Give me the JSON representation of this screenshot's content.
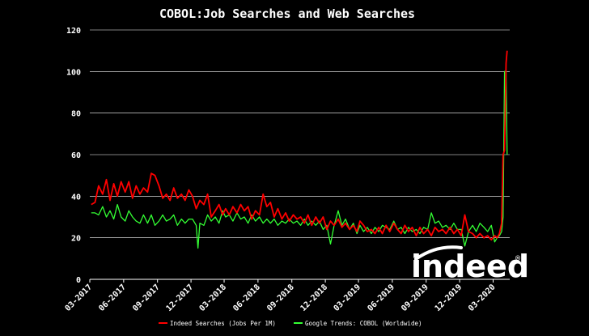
{
  "chart_data": {
    "type": "line",
    "title": "COBOL:Job Searches and Web Searches",
    "xlabel": "",
    "ylabel": "",
    "ylim": [
      0,
      120
    ],
    "yticks": [
      0,
      20,
      40,
      60,
      80,
      100,
      120
    ],
    "grid": "horizontal",
    "x_start": "2017-03-01",
    "x_end": "2020-04-15",
    "x_ticks": [
      {
        "date": "2017-03-01",
        "label": "03-2017"
      },
      {
        "date": "2017-06-01",
        "label": "06-2017"
      },
      {
        "date": "2017-09-01",
        "label": "09-2017"
      },
      {
        "date": "2017-12-01",
        "label": "12-2017"
      },
      {
        "date": "2018-03-01",
        "label": "03-2018"
      },
      {
        "date": "2018-06-01",
        "label": "06-2018"
      },
      {
        "date": "2018-09-01",
        "label": "09-2018"
      },
      {
        "date": "2018-12-01",
        "label": "12-2018"
      },
      {
        "date": "2019-03-01",
        "label": "03-2019"
      },
      {
        "date": "2019-06-01",
        "label": "06-2019"
      },
      {
        "date": "2019-09-01",
        "label": "09-2019"
      },
      {
        "date": "2019-12-01",
        "label": "12-2019"
      },
      {
        "date": "2020-03-01",
        "label": "03-2020"
      }
    ],
    "legend_position": "bottom",
    "series": [
      {
        "name": "Indeed Searches (Jobs Per 1M)",
        "color": "#ff0000",
        "points": [
          [
            "2017-03-05",
            36
          ],
          [
            "2017-03-15",
            37
          ],
          [
            "2017-03-25",
            45
          ],
          [
            "2017-04-05",
            41
          ],
          [
            "2017-04-15",
            48
          ],
          [
            "2017-04-25",
            38
          ],
          [
            "2017-05-05",
            46
          ],
          [
            "2017-05-15",
            40
          ],
          [
            "2017-05-25",
            47
          ],
          [
            "2017-06-05",
            42
          ],
          [
            "2017-06-15",
            47
          ],
          [
            "2017-06-25",
            39
          ],
          [
            "2017-07-05",
            45
          ],
          [
            "2017-07-15",
            41
          ],
          [
            "2017-07-25",
            44
          ],
          [
            "2017-08-05",
            42
          ],
          [
            "2017-08-15",
            51
          ],
          [
            "2017-08-25",
            50
          ],
          [
            "2017-09-05",
            45
          ],
          [
            "2017-09-15",
            39
          ],
          [
            "2017-09-25",
            41
          ],
          [
            "2017-10-05",
            38
          ],
          [
            "2017-10-15",
            44
          ],
          [
            "2017-10-25",
            39
          ],
          [
            "2017-11-05",
            41
          ],
          [
            "2017-11-15",
            38
          ],
          [
            "2017-11-25",
            43
          ],
          [
            "2017-12-05",
            40
          ],
          [
            "2017-12-15",
            34
          ],
          [
            "2017-12-25",
            38
          ],
          [
            "2018-01-05",
            36
          ],
          [
            "2018-01-15",
            41
          ],
          [
            "2018-01-25",
            30
          ],
          [
            "2018-02-05",
            33
          ],
          [
            "2018-02-15",
            36
          ],
          [
            "2018-02-25",
            31
          ],
          [
            "2018-03-05",
            34
          ],
          [
            "2018-03-15",
            31
          ],
          [
            "2018-03-25",
            35
          ],
          [
            "2018-04-05",
            32
          ],
          [
            "2018-04-15",
            36
          ],
          [
            "2018-04-25",
            33
          ],
          [
            "2018-05-05",
            35
          ],
          [
            "2018-05-15",
            29
          ],
          [
            "2018-05-25",
            33
          ],
          [
            "2018-06-05",
            31
          ],
          [
            "2018-06-15",
            41
          ],
          [
            "2018-06-25",
            35
          ],
          [
            "2018-07-05",
            37
          ],
          [
            "2018-07-15",
            30
          ],
          [
            "2018-07-25",
            34
          ],
          [
            "2018-08-05",
            29
          ],
          [
            "2018-08-15",
            32
          ],
          [
            "2018-08-25",
            28
          ],
          [
            "2018-09-05",
            31
          ],
          [
            "2018-09-15",
            29
          ],
          [
            "2018-09-25",
            30
          ],
          [
            "2018-10-05",
            27
          ],
          [
            "2018-10-15",
            31
          ],
          [
            "2018-10-25",
            26
          ],
          [
            "2018-11-05",
            30
          ],
          [
            "2018-11-15",
            27
          ],
          [
            "2018-11-25",
            30
          ],
          [
            "2018-12-05",
            24
          ],
          [
            "2018-12-15",
            28
          ],
          [
            "2018-12-25",
            26
          ],
          [
            "2019-01-05",
            29
          ],
          [
            "2019-01-15",
            25
          ],
          [
            "2019-01-25",
            27
          ],
          [
            "2019-02-05",
            24
          ],
          [
            "2019-02-15",
            26
          ],
          [
            "2019-02-25",
            23
          ],
          [
            "2019-03-05",
            28
          ],
          [
            "2019-03-15",
            26
          ],
          [
            "2019-03-25",
            23
          ],
          [
            "2019-04-05",
            24
          ],
          [
            "2019-04-15",
            22
          ],
          [
            "2019-04-25",
            25
          ],
          [
            "2019-05-05",
            22
          ],
          [
            "2019-05-15",
            26
          ],
          [
            "2019-05-25",
            23
          ],
          [
            "2019-06-05",
            27
          ],
          [
            "2019-06-15",
            24
          ],
          [
            "2019-06-25",
            22
          ],
          [
            "2019-07-05",
            26
          ],
          [
            "2019-07-15",
            23
          ],
          [
            "2019-07-25",
            25
          ],
          [
            "2019-08-05",
            21
          ],
          [
            "2019-08-15",
            25
          ],
          [
            "2019-08-25",
            22
          ],
          [
            "2019-09-05",
            24
          ],
          [
            "2019-09-15",
            21
          ],
          [
            "2019-09-25",
            25
          ],
          [
            "2019-10-05",
            23
          ],
          [
            "2019-10-15",
            24
          ],
          [
            "2019-10-25",
            22
          ],
          [
            "2019-11-05",
            25
          ],
          [
            "2019-11-15",
            22
          ],
          [
            "2019-11-25",
            24
          ],
          [
            "2019-12-05",
            21
          ],
          [
            "2019-12-15",
            31
          ],
          [
            "2019-12-25",
            23
          ],
          [
            "2020-01-05",
            22
          ],
          [
            "2020-01-15",
            20
          ],
          [
            "2020-01-25",
            22
          ],
          [
            "2020-02-05",
            20
          ],
          [
            "2020-02-15",
            21
          ],
          [
            "2020-02-25",
            19
          ],
          [
            "2020-03-05",
            21
          ],
          [
            "2020-03-12",
            20
          ],
          [
            "2020-03-18",
            22
          ],
          [
            "2020-03-24",
            27
          ],
          [
            "2020-03-28",
            60
          ],
          [
            "2020-04-01",
            62
          ],
          [
            "2020-04-05",
            104
          ],
          [
            "2020-04-08",
            110
          ]
        ]
      },
      {
        "name": "Google Trends: COBOL (Worldwide)",
        "color": "#33ff33",
        "points": [
          [
            "2017-03-05",
            32
          ],
          [
            "2017-03-15",
            32
          ],
          [
            "2017-03-25",
            31
          ],
          [
            "2017-04-05",
            35
          ],
          [
            "2017-04-15",
            30
          ],
          [
            "2017-04-25",
            33
          ],
          [
            "2017-05-05",
            29
          ],
          [
            "2017-05-15",
            36
          ],
          [
            "2017-05-25",
            30
          ],
          [
            "2017-06-05",
            28
          ],
          [
            "2017-06-15",
            33
          ],
          [
            "2017-06-25",
            30
          ],
          [
            "2017-07-05",
            28
          ],
          [
            "2017-07-15",
            27
          ],
          [
            "2017-07-25",
            31
          ],
          [
            "2017-08-05",
            27
          ],
          [
            "2017-08-15",
            31
          ],
          [
            "2017-08-25",
            26
          ],
          [
            "2017-09-05",
            28
          ],
          [
            "2017-09-15",
            31
          ],
          [
            "2017-09-25",
            28
          ],
          [
            "2017-10-05",
            29
          ],
          [
            "2017-10-15",
            31
          ],
          [
            "2017-10-25",
            26
          ],
          [
            "2017-11-05",
            29
          ],
          [
            "2017-11-15",
            27
          ],
          [
            "2017-11-25",
            29
          ],
          [
            "2017-12-05",
            29
          ],
          [
            "2017-12-15",
            26
          ],
          [
            "2017-12-20",
            15
          ],
          [
            "2017-12-25",
            27
          ],
          [
            "2018-01-05",
            26
          ],
          [
            "2018-01-15",
            31
          ],
          [
            "2018-01-25",
            28
          ],
          [
            "2018-02-05",
            30
          ],
          [
            "2018-02-15",
            27
          ],
          [
            "2018-02-25",
            33
          ],
          [
            "2018-03-05",
            30
          ],
          [
            "2018-03-15",
            31
          ],
          [
            "2018-03-25",
            28
          ],
          [
            "2018-04-05",
            32
          ],
          [
            "2018-04-15",
            29
          ],
          [
            "2018-04-25",
            30
          ],
          [
            "2018-05-05",
            27
          ],
          [
            "2018-05-15",
            31
          ],
          [
            "2018-05-25",
            28
          ],
          [
            "2018-06-05",
            30
          ],
          [
            "2018-06-15",
            27
          ],
          [
            "2018-06-25",
            29
          ],
          [
            "2018-07-05",
            27
          ],
          [
            "2018-07-15",
            29
          ],
          [
            "2018-07-25",
            26
          ],
          [
            "2018-08-05",
            28
          ],
          [
            "2018-08-15",
            27
          ],
          [
            "2018-08-25",
            29
          ],
          [
            "2018-09-05",
            27
          ],
          [
            "2018-09-15",
            28
          ],
          [
            "2018-09-25",
            26
          ],
          [
            "2018-10-05",
            29
          ],
          [
            "2018-10-15",
            26
          ],
          [
            "2018-10-25",
            28
          ],
          [
            "2018-11-05",
            26
          ],
          [
            "2018-11-15",
            28
          ],
          [
            "2018-11-25",
            24
          ],
          [
            "2018-12-05",
            26
          ],
          [
            "2018-12-15",
            17
          ],
          [
            "2018-12-25",
            26
          ],
          [
            "2019-01-05",
            33
          ],
          [
            "2019-01-15",
            26
          ],
          [
            "2019-01-25",
            29
          ],
          [
            "2019-02-05",
            24
          ],
          [
            "2019-02-15",
            27
          ],
          [
            "2019-02-25",
            22
          ],
          [
            "2019-03-05",
            26
          ],
          [
            "2019-03-15",
            23
          ],
          [
            "2019-03-25",
            25
          ],
          [
            "2019-04-05",
            22
          ],
          [
            "2019-04-15",
            25
          ],
          [
            "2019-04-25",
            23
          ],
          [
            "2019-05-05",
            26
          ],
          [
            "2019-05-25",
            24
          ],
          [
            "2019-06-05",
            28
          ],
          [
            "2019-06-15",
            24
          ],
          [
            "2019-06-25",
            25
          ],
          [
            "2019-07-05",
            22
          ],
          [
            "2019-07-15",
            25
          ],
          [
            "2019-07-25",
            23
          ],
          [
            "2019-08-05",
            24
          ],
          [
            "2019-08-15",
            22
          ],
          [
            "2019-08-25",
            25
          ],
          [
            "2019-09-05",
            24
          ],
          [
            "2019-09-15",
            32
          ],
          [
            "2019-09-25",
            27
          ],
          [
            "2019-10-05",
            28
          ],
          [
            "2019-10-15",
            25
          ],
          [
            "2019-10-25",
            26
          ],
          [
            "2019-11-05",
            24
          ],
          [
            "2019-11-15",
            27
          ],
          [
            "2019-11-25",
            24
          ],
          [
            "2019-12-05",
            24
          ],
          [
            "2019-12-15",
            16
          ],
          [
            "2019-12-25",
            23
          ],
          [
            "2020-01-05",
            26
          ],
          [
            "2020-01-15",
            23
          ],
          [
            "2020-01-25",
            27
          ],
          [
            "2020-02-05",
            25
          ],
          [
            "2020-02-15",
            23
          ],
          [
            "2020-02-25",
            26
          ],
          [
            "2020-03-05",
            18
          ],
          [
            "2020-03-12",
            20
          ],
          [
            "2020-03-18",
            21
          ],
          [
            "2020-03-24",
            23
          ],
          [
            "2020-03-28",
            30
          ],
          [
            "2020-04-01",
            100
          ],
          [
            "2020-04-05",
            100
          ],
          [
            "2020-04-08",
            60
          ]
        ]
      }
    ]
  },
  "logo": {
    "text": "indeed",
    "mark": "®"
  }
}
